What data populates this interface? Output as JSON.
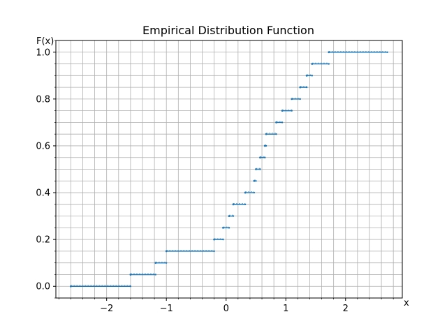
{
  "chart_data": {
    "type": "line",
    "title": "Empirical Distribution Function",
    "xlabel": "x",
    "ylabel": "F(x)",
    "xlim": [
      -2.85,
      2.95
    ],
    "ylim": [
      -0.05,
      1.05
    ],
    "grid": true,
    "minor_grid": true,
    "x_ticks": [
      -2,
      -1,
      0,
      1,
      2
    ],
    "x_tick_labels": [
      "−2",
      "−1",
      "0",
      "1",
      "2"
    ],
    "y_ticks": [
      0.0,
      0.2,
      0.4,
      0.6,
      0.8,
      1.0
    ],
    "y_tick_labels": [
      "0.0",
      "0.2",
      "0.4",
      "0.6",
      "0.8",
      "1.0"
    ],
    "series_color": "#1f77b4",
    "steps": [
      {
        "x0": -2.6,
        "x1": -1.6,
        "y": 0.0
      },
      {
        "x0": -1.6,
        "x1": -1.18,
        "y": 0.05
      },
      {
        "x0": -1.18,
        "x1": -1.0,
        "y": 0.1
      },
      {
        "x0": -1.0,
        "x1": -0.2,
        "y": 0.15
      },
      {
        "x0": -0.2,
        "x1": -0.05,
        "y": 0.2
      },
      {
        "x0": -0.05,
        "x1": 0.05,
        "y": 0.25
      },
      {
        "x0": 0.05,
        "x1": 0.12,
        "y": 0.3
      },
      {
        "x0": 0.12,
        "x1": 0.32,
        "y": 0.35
      },
      {
        "x0": 0.32,
        "x1": 0.47,
        "y": 0.4
      },
      {
        "x0": 0.47,
        "x1": 0.5,
        "y": 0.45
      },
      {
        "x0": 0.5,
        "x1": 0.57,
        "y": 0.5
      },
      {
        "x0": 0.57,
        "x1": 0.65,
        "y": 0.55
      },
      {
        "x0": 0.65,
        "x1": 0.67,
        "y": 0.6
      },
      {
        "x0": 0.67,
        "x1": 0.84,
        "y": 0.65
      },
      {
        "x0": 0.84,
        "x1": 0.94,
        "y": 0.7
      },
      {
        "x0": 0.94,
        "x1": 1.1,
        "y": 0.75
      },
      {
        "x0": 1.1,
        "x1": 1.24,
        "y": 0.8
      },
      {
        "x0": 1.24,
        "x1": 1.35,
        "y": 0.85
      },
      {
        "x0": 1.35,
        "x1": 1.44,
        "y": 0.9
      },
      {
        "x0": 1.44,
        "x1": 1.72,
        "y": 0.95
      },
      {
        "x0": 1.72,
        "x1": 2.7,
        "y": 1.0
      }
    ]
  }
}
